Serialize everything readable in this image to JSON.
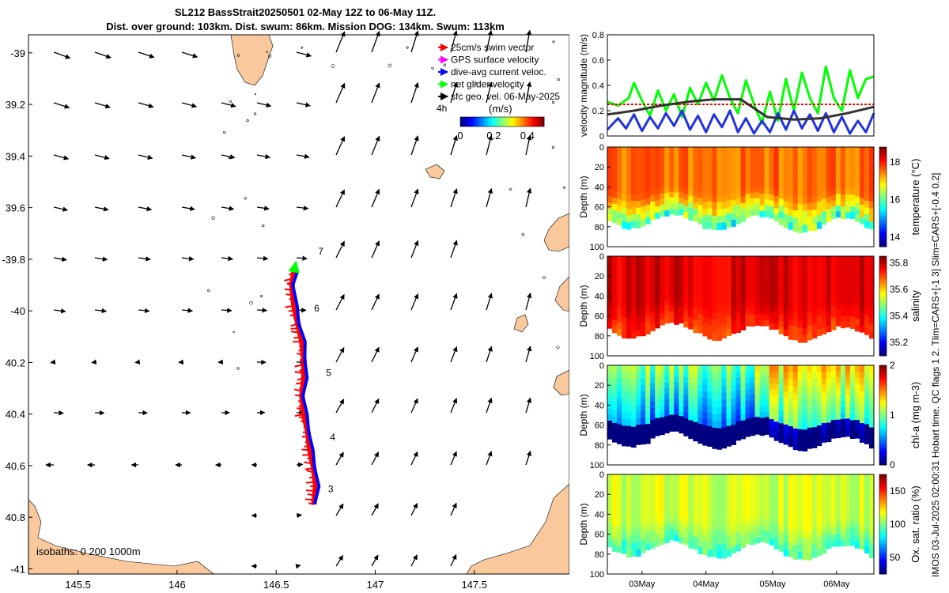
{
  "title_line1": "SL212 BassStrait20250501 02-May 12Z to 06-May 11Z.",
  "title_line2": "Dist. over ground: 103km. Dist. swum: 86km. Mission DOG: 134km. Swum: 113km",
  "side_caption": "IMOS 03-Jul-2025 02:00:31 Hobart time. QC flags 1  2. Tlim=CARS+[-1 3] Slim=CARS+[-0.4 0.2]",
  "colors": {
    "land": "#f9c99d",
    "swim": "#ff0000",
    "gps": "#ff00ff",
    "dive": "#0000ff",
    "net": "#00ff00",
    "geo": "#000000",
    "mean": "#333333"
  },
  "chart_data": [
    {
      "type": "map",
      "title": "glider track and velocities",
      "xlim": [
        145.25,
        147.98
      ],
      "ylim": [
        -41.02,
        -38.93
      ],
      "x_ticks": [
        145.5,
        146,
        146.5,
        147,
        147.5
      ],
      "x_tick_labels": [
        "145.5",
        "146",
        "146.5",
        "147",
        "147.5"
      ],
      "y_ticks": [
        -39,
        -39.2,
        -39.4,
        -39.6,
        -39.8,
        -40,
        -40.2,
        -40.4,
        -40.6,
        -40.8,
        -41
      ],
      "y_tick_labels": [
        "-39",
        "39.2",
        "39.4",
        "39.6",
        "-39.8",
        "-40",
        "40.2",
        "40.4",
        "40.6",
        "40.8",
        "-41"
      ],
      "legend": [
        {
          "label": "25cm/s swim vector",
          "color": "#ff0000"
        },
        {
          "label": "GPS surface velocity",
          "color": "#ff00ff"
        },
        {
          "label": "dive-avg current veloc.",
          "color": "#0000ff"
        },
        {
          "label": "net glider velocity",
          "color": "#00ff00"
        },
        {
          "label": "sfc geo. vel. 06-May-2025",
          "color": "#000000"
        }
      ],
      "time_step_label": "4h",
      "colorbar": {
        "label": "(m/s)",
        "range": [
          0,
          0.5
        ],
        "ticks": [
          0,
          0.2,
          0.4
        ],
        "tick_labels": [
          "0",
          "0.2",
          "0.4"
        ]
      },
      "day_markers": [
        {
          "label": "3",
          "lon": 146.73,
          "lat": -40.69
        },
        {
          "label": "4",
          "lon": 146.74,
          "lat": -40.49
        },
        {
          "label": "5",
          "lon": 146.72,
          "lat": -40.24
        },
        {
          "label": "6",
          "lon": 146.66,
          "lat": -39.99
        },
        {
          "label": "7",
          "lon": 146.68,
          "lat": -39.77
        }
      ],
      "track": [
        [
          146.69,
          -40.75
        ],
        [
          146.7,
          -40.68
        ],
        [
          146.69,
          -40.61
        ],
        [
          146.67,
          -40.54
        ],
        [
          146.66,
          -40.47
        ],
        [
          146.64,
          -40.4
        ],
        [
          146.63,
          -40.33
        ],
        [
          146.64,
          -40.26
        ],
        [
          146.64,
          -40.19
        ],
        [
          146.63,
          -40.12
        ],
        [
          146.61,
          -40.05
        ],
        [
          146.59,
          -39.98
        ],
        [
          146.58,
          -39.9
        ],
        [
          146.59,
          -39.85
        ]
      ],
      "net_velocity_arrow": [
        [
          146.59,
          -39.85
        ],
        [
          146.6,
          -39.81
        ]
      ],
      "isobath_label": "isobaths: 0   200  1000m"
    },
    {
      "type": "line",
      "ylabel": "velocity magnitude (m/s)",
      "ylim": [
        0,
        0.8
      ],
      "y_ticks": [
        0,
        0.2,
        0.4,
        0.6,
        0.8
      ],
      "y_tick_labels": [
        "0",
        "0.2",
        "0.4",
        "0.6",
        "0.8"
      ],
      "xlim": [
        0,
        1
      ],
      "series": [
        {
          "name": "net glider velocity",
          "color": "#00ff00",
          "x": [
            0,
            0.04,
            0.08,
            0.1,
            0.13,
            0.16,
            0.19,
            0.22,
            0.25,
            0.28,
            0.31,
            0.34,
            0.37,
            0.4,
            0.43,
            0.46,
            0.49,
            0.52,
            0.55,
            0.58,
            0.61,
            0.64,
            0.67,
            0.7,
            0.73,
            0.76,
            0.79,
            0.82,
            0.85,
            0.88,
            0.91,
            0.94,
            0.97,
            1.0
          ],
          "y": [
            0.27,
            0.24,
            0.3,
            0.42,
            0.28,
            0.16,
            0.36,
            0.2,
            0.33,
            0.15,
            0.38,
            0.25,
            0.42,
            0.28,
            0.48,
            0.3,
            0.18,
            0.44,
            0.25,
            0.1,
            0.35,
            0.12,
            0.45,
            0.2,
            0.5,
            0.3,
            0.18,
            0.55,
            0.3,
            0.2,
            0.52,
            0.3,
            0.45,
            0.47
          ]
        },
        {
          "name": "dive-avg current veloc.",
          "color": "#2233dd",
          "x": [
            0,
            0.04,
            0.07,
            0.1,
            0.13,
            0.16,
            0.19,
            0.22,
            0.25,
            0.28,
            0.31,
            0.34,
            0.37,
            0.4,
            0.43,
            0.46,
            0.49,
            0.52,
            0.55,
            0.58,
            0.61,
            0.64,
            0.67,
            0.7,
            0.73,
            0.76,
            0.79,
            0.82,
            0.85,
            0.88,
            0.91,
            0.94,
            0.97,
            1.0
          ],
          "y": [
            0.05,
            0.14,
            0.06,
            0.17,
            0.04,
            0.15,
            0.06,
            0.18,
            0.08,
            0.2,
            0.05,
            0.16,
            0.03,
            0.17,
            0.07,
            0.2,
            0.03,
            0.14,
            0.02,
            0.12,
            0.03,
            0.18,
            0.05,
            0.2,
            0.06,
            0.17,
            0.04,
            0.18,
            0.03,
            0.15,
            0.02,
            0.12,
            0.03,
            0.18
          ]
        },
        {
          "name": "swim speed",
          "color": "#ff0000",
          "x": [
            0,
            1
          ],
          "y": [
            0.25,
            0.25
          ]
        },
        {
          "name": "sfc geo. vel.",
          "color": "#333333",
          "x": [
            0,
            0.1,
            0.2,
            0.3,
            0.4,
            0.5,
            0.6,
            0.7,
            0.8,
            0.9,
            1.0
          ],
          "y": [
            0.17,
            0.2,
            0.24,
            0.27,
            0.29,
            0.29,
            0.15,
            0.13,
            0.14,
            0.18,
            0.23
          ]
        }
      ]
    },
    {
      "type": "heatmap",
      "variable": "temperature",
      "ylabel": "Depth (m)",
      "ylim": [
        0,
        100
      ],
      "y_ticks": [
        0,
        20,
        40,
        60,
        80,
        100
      ],
      "y_tick_labels": [
        "0",
        "20",
        "40",
        "60",
        "80",
        "100"
      ],
      "colorbar_label": "temperature (°C)",
      "colorbar_ticks": [
        "14",
        "16",
        "18"
      ],
      "clim": [
        13.5,
        18.8
      ],
      "base_value": 17.6,
      "bottom_value": 16.0
    },
    {
      "type": "heatmap",
      "variable": "salinity",
      "ylabel": "Depth (m)",
      "ylim": [
        0,
        100
      ],
      "y_ticks": [
        0,
        20,
        40,
        60,
        80,
        100
      ],
      "y_tick_labels": [
        "0",
        "20",
        "40",
        "60",
        "80",
        "100"
      ],
      "colorbar_label": "salinity",
      "colorbar_ticks": [
        "35.2",
        "35.4",
        "35.6",
        "35.8"
      ],
      "clim": [
        35.1,
        35.85
      ],
      "base_value": 35.78,
      "bottom_value": 35.72
    },
    {
      "type": "heatmap",
      "variable": "chl-a",
      "ylabel": "Depth (m)",
      "ylim": [
        0,
        100
      ],
      "y_ticks": [
        0,
        20,
        40,
        60,
        80,
        100
      ],
      "y_tick_labels": [
        "0",
        "20",
        "40",
        "60",
        "80",
        "100"
      ],
      "colorbar_label": "chl-a (mg m-3)",
      "colorbar_ticks": [
        "0",
        "1",
        "2"
      ],
      "clim": [
        0,
        2
      ],
      "base_value": 1.0,
      "bottom_value": 0.1
    },
    {
      "type": "heatmap",
      "variable": "oxygen saturation",
      "ylabel": "Depth (m)",
      "ylim": [
        0,
        100
      ],
      "y_ticks": [
        0,
        20,
        40,
        60,
        80,
        100
      ],
      "y_tick_labels": [
        "0",
        "20",
        "40",
        "60",
        "80",
        "100"
      ],
      "colorbar_label": "Ox. sat. ratio (%)",
      "colorbar_ticks": [
        "50",
        "100",
        "150"
      ],
      "clim": [
        25,
        175
      ],
      "base_value": 112,
      "bottom_value": 92,
      "x_tick_labels": [
        "03May",
        "04May",
        "05May",
        "06May"
      ],
      "x_ticks": [
        0.13,
        0.37,
        0.62,
        0.86
      ]
    }
  ]
}
